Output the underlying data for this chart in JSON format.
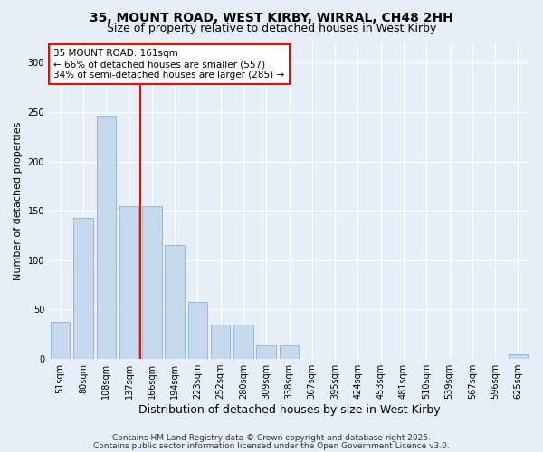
{
  "title": "35, MOUNT ROAD, WEST KIRBY, WIRRAL, CH48 2HH",
  "subtitle": "Size of property relative to detached houses in West Kirby",
  "xlabel": "Distribution of detached houses by size in West Kirby",
  "ylabel": "Number of detached properties",
  "categories": [
    "51sqm",
    "80sqm",
    "108sqm",
    "137sqm",
    "166sqm",
    "194sqm",
    "223sqm",
    "252sqm",
    "280sqm",
    "309sqm",
    "338sqm",
    "367sqm",
    "395sqm",
    "424sqm",
    "453sqm",
    "481sqm",
    "510sqm",
    "539sqm",
    "567sqm",
    "596sqm",
    "625sqm"
  ],
  "values": [
    38,
    143,
    246,
    155,
    155,
    115,
    58,
    35,
    35,
    14,
    14,
    0,
    0,
    0,
    0,
    0,
    0,
    0,
    0,
    0,
    5
  ],
  "bar_color": "#c5d8ed",
  "bar_edge_color": "#8ab4d4",
  "vline_color": "red",
  "annotation_text": "35 MOUNT ROAD: 161sqm\n← 66% of detached houses are smaller (557)\n34% of semi-detached houses are larger (285) →",
  "annotation_box_color": "white",
  "annotation_box_edge_color": "red",
  "ylim": [
    0,
    320
  ],
  "yticks": [
    0,
    50,
    100,
    150,
    200,
    250,
    300
  ],
  "footer1": "Contains HM Land Registry data © Crown copyright and database right 2025.",
  "footer2": "Contains public sector information licensed under the Open Government Licence v3.0.",
  "bg_color": "#e8eef8",
  "plot_bg_color": "#e8eef8",
  "title_fontsize": 10,
  "subtitle_fontsize": 9,
  "xlabel_fontsize": 9,
  "ylabel_fontsize": 8,
  "tick_fontsize": 7,
  "annotation_fontsize": 7.5,
  "footer_fontsize": 6.5
}
